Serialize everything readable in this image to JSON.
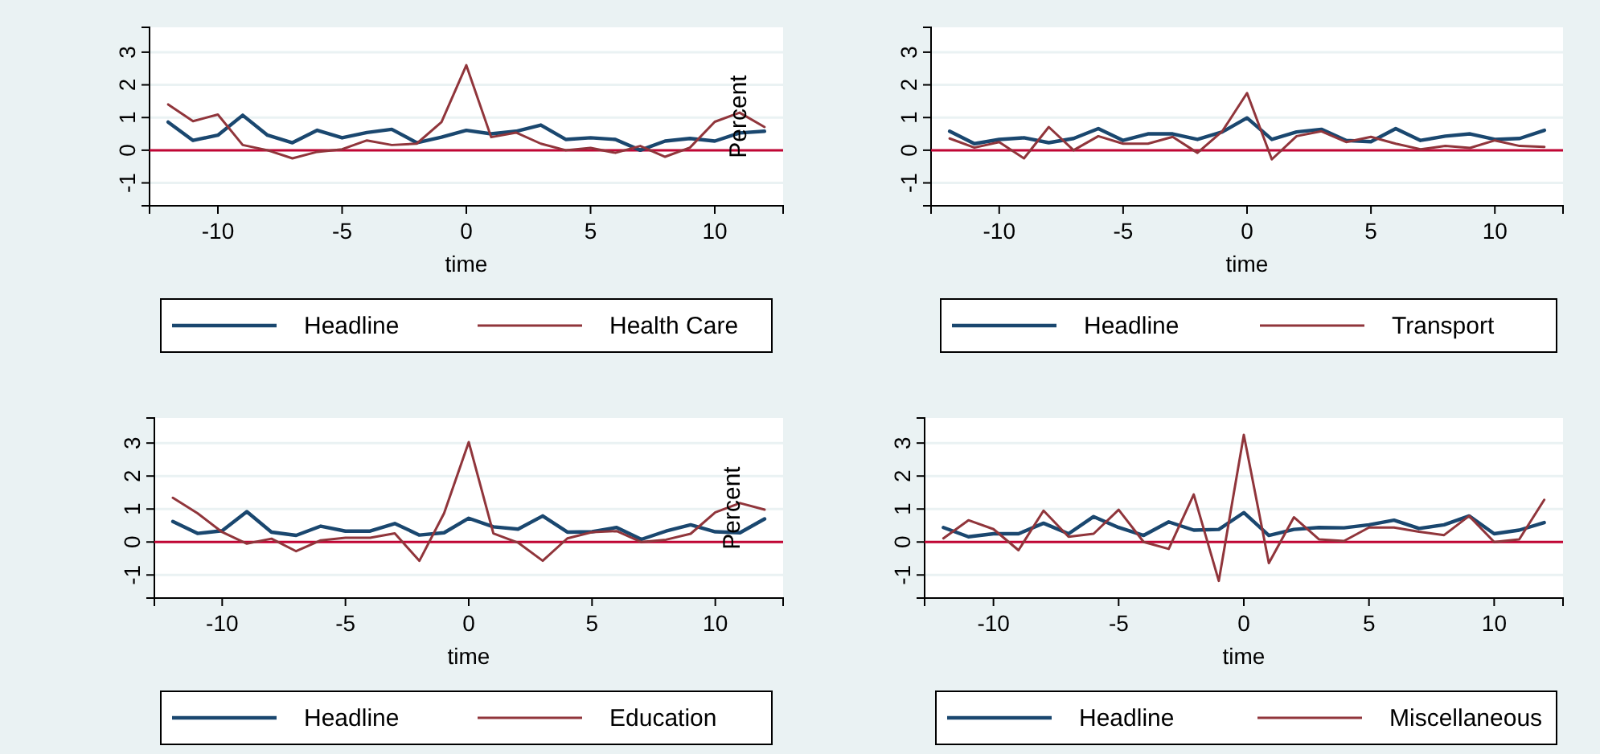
{
  "chart_data": [
    {
      "type": "line",
      "xlabel": "time",
      "x": [
        -12,
        -11,
        -10,
        -9,
        -8,
        -7,
        -6,
        -5,
        -4,
        -3,
        -2,
        -1,
        0,
        1,
        2,
        3,
        4,
        5,
        6,
        7,
        8,
        9,
        10,
        11,
        12
      ],
      "xlim": [
        -12.75,
        12.75
      ],
      "xticks": [
        -10,
        -5,
        0,
        5,
        10
      ],
      "ylim": [
        -1.7,
        3.76
      ],
      "yticks": [
        -1,
        0,
        1,
        2,
        3
      ],
      "grid": "y",
      "legend": "bottom",
      "marker": "none",
      "ref_lines": [
        {
          "axis": "y",
          "value": 0,
          "color": "#c10534"
        }
      ],
      "series": [
        {
          "name": "Headline",
          "color": "#1a476f",
          "values": [
            0.86,
            0.3,
            0.46,
            1.07,
            0.46,
            0.23,
            0.61,
            0.38,
            0.54,
            0.64,
            0.23,
            0.4,
            0.61,
            0.5,
            0.58,
            0.77,
            0.33,
            0.38,
            0.33,
            0,
            0.28,
            0.36,
            0.28,
            0.53,
            0.58
          ]
        },
        {
          "name": "Health Care",
          "color": "#90353b",
          "values": [
            1.4,
            0.89,
            1.09,
            0.16,
            0,
            -0.25,
            -0.05,
            0.03,
            0.3,
            0.16,
            0.2,
            0.86,
            2.6,
            0.4,
            0.54,
            0.2,
            0,
            0.07,
            -0.08,
            0.13,
            -0.2,
            0.08,
            0.87,
            1.15,
            0.71
          ]
        }
      ]
    },
    {
      "type": "line",
      "xlabel": "time",
      "ylabel": "Percent",
      "x": [
        -12,
        -11,
        -10,
        -9,
        -8,
        -7,
        -6,
        -5,
        -4,
        -3,
        -2,
        -1,
        0,
        1,
        2,
        3,
        4,
        5,
        6,
        7,
        8,
        9,
        10,
        11,
        12
      ],
      "xlim": [
        -12.75,
        12.75
      ],
      "xticks": [
        -10,
        -5,
        0,
        5,
        10
      ],
      "ylim": [
        -1.7,
        3.76
      ],
      "yticks": [
        -1,
        0,
        1,
        2,
        3
      ],
      "grid": "y",
      "legend": "bottom",
      "marker": "none",
      "ref_lines": [
        {
          "axis": "y",
          "value": 0,
          "color": "#c10534"
        }
      ],
      "series": [
        {
          "name": "Headline",
          "color": "#1a476f",
          "values": [
            0.58,
            0.2,
            0.33,
            0.38,
            0.23,
            0.36,
            0.66,
            0.3,
            0.5,
            0.5,
            0.33,
            0.56,
            0.99,
            0.33,
            0.56,
            0.64,
            0.3,
            0.26,
            0.66,
            0.3,
            0.43,
            0.5,
            0.33,
            0.36,
            0.61
          ]
        },
        {
          "name": "Transport",
          "color": "#90353b",
          "values": [
            0.36,
            0.08,
            0.25,
            -0.25,
            0.71,
            0,
            0.43,
            0.2,
            0.2,
            0.41,
            -0.08,
            0.58,
            1.75,
            -0.28,
            0.43,
            0.58,
            0.25,
            0.41,
            0.2,
            0.03,
            0.13,
            0.07,
            0.3,
            0.13,
            0.1
          ]
        }
      ]
    },
    {
      "type": "line",
      "xlabel": "time",
      "x": [
        -12,
        -11,
        -10,
        -9,
        -8,
        -7,
        -6,
        -5,
        -4,
        -3,
        -2,
        -1,
        0,
        1,
        2,
        3,
        4,
        5,
        6,
        7,
        8,
        9,
        10,
        11,
        12
      ],
      "xlim": [
        -12.75,
        12.75
      ],
      "xticks": [
        -10,
        -5,
        0,
        5,
        10
      ],
      "ylim": [
        -1.7,
        3.76
      ],
      "yticks": [
        -1,
        0,
        1,
        2,
        3
      ],
      "grid": "y",
      "legend": "bottom",
      "marker": "none",
      "ref_lines": [
        {
          "axis": "y",
          "value": 0,
          "color": "#c10534"
        }
      ],
      "series": [
        {
          "name": "Headline",
          "color": "#1a476f",
          "values": [
            0.62,
            0.26,
            0.34,
            0.92,
            0.3,
            0.2,
            0.48,
            0.33,
            0.33,
            0.56,
            0.21,
            0.28,
            0.72,
            0.46,
            0.39,
            0.79,
            0.3,
            0.31,
            0.44,
            0.08,
            0.33,
            0.52,
            0.31,
            0.28,
            0.7
          ]
        },
        {
          "name": "Education",
          "color": "#90353b",
          "values": [
            1.34,
            0.87,
            0.3,
            -0.05,
            0.1,
            -0.28,
            0.05,
            0.13,
            0.13,
            0.26,
            -0.57,
            0.87,
            3.03,
            0.26,
            -0.02,
            -0.57,
            0.11,
            0.3,
            0.33,
            0,
            0.07,
            0.25,
            0.9,
            1.18,
            0.98
          ]
        }
      ]
    },
    {
      "type": "line",
      "xlabel": "time",
      "ylabel": "Percent",
      "x": [
        -12,
        -11,
        -10,
        -9,
        -8,
        -7,
        -6,
        -5,
        -4,
        -3,
        -2,
        -1,
        0,
        1,
        2,
        3,
        4,
        5,
        6,
        7,
        8,
        9,
        10,
        11,
        12
      ],
      "xlim": [
        -12.75,
        12.75
      ],
      "xticks": [
        -10,
        -5,
        0,
        5,
        10
      ],
      "ylim": [
        -1.7,
        3.76
      ],
      "yticks": [
        -1,
        0,
        1,
        2,
        3
      ],
      "grid": "y",
      "legend": "bottom",
      "marker": "none",
      "ref_lines": [
        {
          "axis": "y",
          "value": 0,
          "color": "#c10534"
        }
      ],
      "series": [
        {
          "name": "Headline",
          "color": "#1a476f",
          "values": [
            0.44,
            0.16,
            0.25,
            0.25,
            0.57,
            0.25,
            0.77,
            0.44,
            0.2,
            0.61,
            0.36,
            0.38,
            0.89,
            0.2,
            0.38,
            0.44,
            0.43,
            0.52,
            0.66,
            0.41,
            0.52,
            0.79,
            0.25,
            0.36,
            0.59
          ]
        },
        {
          "name": "Miscellaneous",
          "color": "#90353b",
          "values": [
            0.11,
            0.66,
            0.39,
            -0.25,
            0.95,
            0.16,
            0.25,
            0.98,
            0,
            -0.21,
            1.44,
            -1.18,
            3.25,
            -0.64,
            0.75,
            0.08,
            0.03,
            0.44,
            0.44,
            0.31,
            0.21,
            0.79,
            0,
            0.08,
            1.28
          ]
        }
      ]
    }
  ]
}
